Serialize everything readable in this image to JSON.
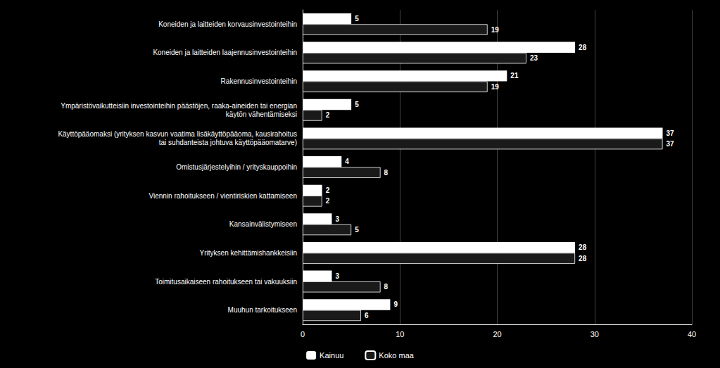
{
  "chart_data": {
    "type": "bar",
    "orientation": "horizontal",
    "categories": [
      "Koneiden ja laitteiden korvausinvestointeihin",
      "Koneiden ja laitteiden laajennusinvestointeihin",
      "Rakennusinvestointeihin",
      "Ympäristövaikutteisiin investointeihin päästöjen, raaka-aineiden tai energian\nkäytön vähentämiseksi",
      "Käyttöpääomaksi (yrityksen kasvun vaatima lisäkäyttöpääoma, kausirahoitus\ntai suhdanteista johtuva käyttöpääomatarve)",
      "Omistusjärjestelyihin / yrityskauppoihin",
      "Viennin rahoitukseen / vientiriskien kattamiseen",
      "Kansainvälistymiseen",
      "Yrityksen kehittämishankkeisiin",
      "Toimitusaikaiseen rahoitukseen tai vakuuksiin",
      "Muuhun tarkoitukseen"
    ],
    "series": [
      {
        "name": "Kainuu",
        "color": "#ffffff",
        "values": [
          5,
          28,
          21,
          5,
          37,
          4,
          2,
          3,
          28,
          3,
          9
        ]
      },
      {
        "name": "Koko maa",
        "color": "#1a1a1a",
        "values": [
          19,
          23,
          19,
          2,
          37,
          8,
          2,
          5,
          28,
          8,
          6
        ]
      }
    ],
    "xlim": [
      0,
      40
    ],
    "xticks": [
      0,
      10,
      20,
      30,
      40
    ],
    "grid": true,
    "legend": "bottom",
    "data_labels": true
  }
}
